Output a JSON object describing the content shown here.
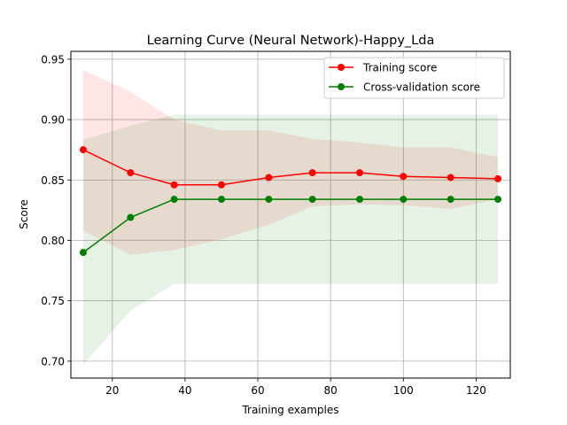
{
  "chart_data": {
    "type": "line",
    "title": "Learning Curve (Neural Network)-Happy_Lda",
    "xlabel": "Training examples",
    "ylabel": "Score",
    "xlim": [
      8.6,
      129.4
    ],
    "ylim": [
      0.686,
      0.9565
    ],
    "xticks": [
      20,
      40,
      60,
      80,
      100,
      120
    ],
    "yticks": [
      0.7,
      0.75,
      0.8,
      0.85,
      0.9,
      0.95
    ],
    "ytick_labels": [
      "0.70",
      "0.75",
      "0.80",
      "0.85",
      "0.90",
      "0.95"
    ],
    "grid": true,
    "legend_position": "top-right",
    "x": [
      12,
      25,
      37,
      50,
      63,
      75,
      88,
      100,
      113,
      126
    ],
    "series": [
      {
        "name": "Training score",
        "color": "#ff0000",
        "band_color": "#ff0000",
        "values": [
          0.875,
          0.856,
          0.846,
          0.846,
          0.852,
          0.856,
          0.856,
          0.853,
          0.852,
          0.851
        ],
        "upper": [
          0.941,
          0.923,
          0.9,
          0.891,
          0.891,
          0.884,
          0.881,
          0.877,
          0.877,
          0.869
        ],
        "lower": [
          0.808,
          0.788,
          0.792,
          0.801,
          0.813,
          0.828,
          0.83,
          0.829,
          0.826,
          0.834
        ]
      },
      {
        "name": "Cross-validation score",
        "color": "#008000",
        "band_color": "#008000",
        "values": [
          0.79,
          0.819,
          0.834,
          0.834,
          0.834,
          0.834,
          0.834,
          0.834,
          0.834,
          0.834
        ],
        "upper": [
          0.883,
          0.895,
          0.904,
          0.904,
          0.904,
          0.904,
          0.904,
          0.904,
          0.904,
          0.904
        ],
        "lower": [
          0.697,
          0.742,
          0.764,
          0.764,
          0.764,
          0.764,
          0.764,
          0.764,
          0.764,
          0.764
        ]
      }
    ]
  }
}
